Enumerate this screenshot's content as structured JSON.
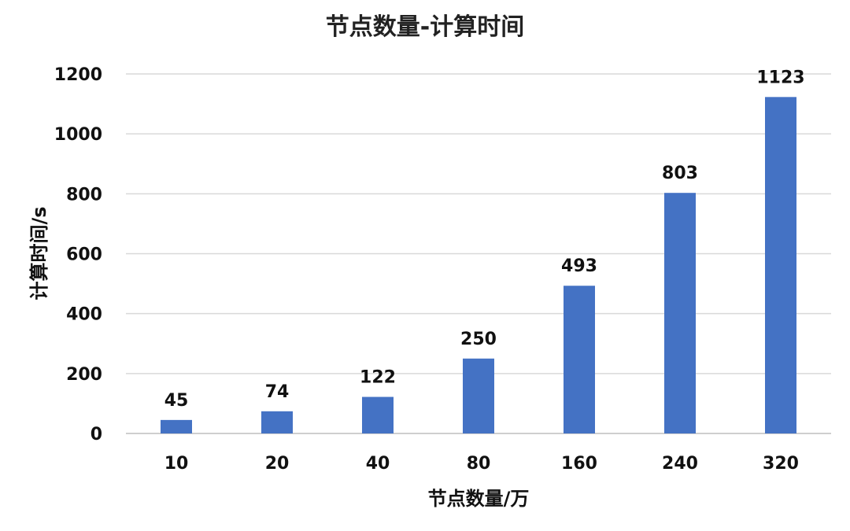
{
  "chart_data": {
    "type": "bar",
    "title": "节点数量-计算时间",
    "xlabel": "节点数量/万",
    "ylabel": "计算时间/s",
    "categories": [
      "10",
      "20",
      "40",
      "80",
      "160",
      "240",
      "320"
    ],
    "values": [
      45,
      74,
      122,
      250,
      493,
      803,
      1123
    ],
    "ylim": [
      0,
      1200
    ],
    "yticks": [
      0,
      200,
      400,
      600,
      800,
      1000,
      1200
    ],
    "grid": true,
    "legend": "none",
    "bar_color": "#4472C4"
  }
}
